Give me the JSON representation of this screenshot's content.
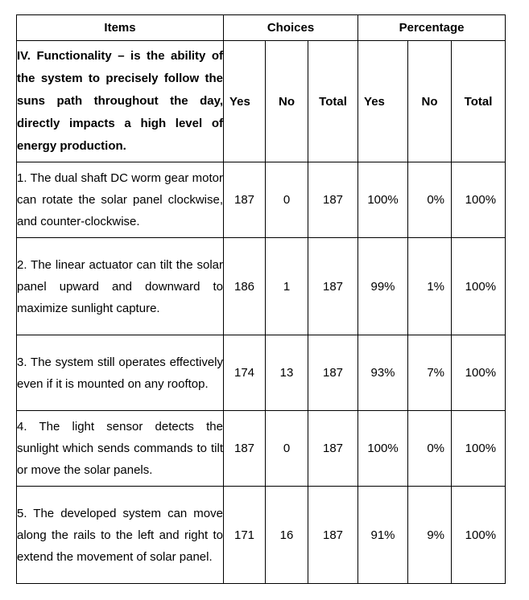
{
  "header": {
    "items": "Items",
    "choices": "Choices",
    "percentage": "Percentage"
  },
  "subheader": {
    "text": "IV. Functionality – is the ability of the system to precisely follow the suns path throughout the day, directly impacts a high level of energy production.",
    "yes": "Yes",
    "no": "No",
    "total": "Total",
    "pct_yes": "Yes",
    "pct_no": "No",
    "pct_total": "Total"
  },
  "rows": [
    {
      "text": "1.  The dual shaft DC worm gear motor can rotate the solar panel clockwise, and counter-clockwise.",
      "yes": "187",
      "no": "0",
      "total": "187",
      "pct_yes": "100%",
      "pct_no": "0%",
      "pct_total": "100%"
    },
    {
      "text": "2.  The linear actuator can tilt the solar panel upward and downward to maximize sunlight capture.",
      "yes": "186",
      "no": "1",
      "total": "187",
      "pct_yes": "99%",
      "pct_no": "1%",
      "pct_total": "100%"
    },
    {
      "text": "3.  The system still operates effectively even if it is mounted on any rooftop.",
      "yes": "174",
      "no": "13",
      "total": "187",
      "pct_yes": "93%",
      "pct_no": "7%",
      "pct_total": "100%"
    },
    {
      "text": "4.  The light sensor detects the sunlight which sends commands to tilt or move the solar panels.",
      "yes": "187",
      "no": "0",
      "total": "187",
      "pct_yes": "100%",
      "pct_no": "0%",
      "pct_total": "100%"
    },
    {
      "text": "5.   The developed system can move along the rails to the left and right to extend the movement of solar panel.",
      "yes": "171",
      "no": "16",
      "total": "187",
      "pct_yes": "91%",
      "pct_no": "9%",
      "pct_total": "100%"
    }
  ]
}
